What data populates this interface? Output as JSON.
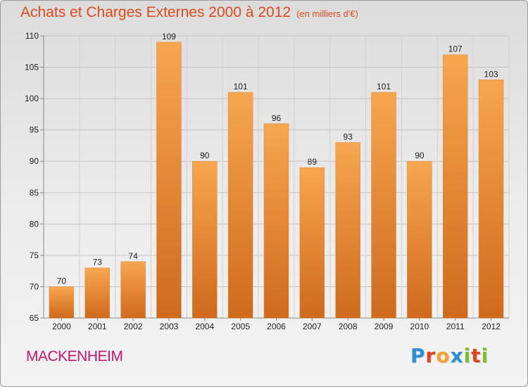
{
  "header": {
    "title": "Achats et Charges Externes 2000 à 2012",
    "subtitle": "(en milliers d'€)"
  },
  "footer": {
    "place": "MACKENHEIM",
    "logo_letters": [
      "P",
      "r",
      "o",
      "x",
      "i",
      "t",
      "i"
    ],
    "logo_colors": [
      "#2c8fd6",
      "#e2431c",
      "#f2a12c",
      "#2c8fd6",
      "#7cbd2a",
      "#e2431c",
      "#7cbd2a"
    ]
  },
  "colors": {
    "bar_light": "#f7a64f",
    "bar_dark": "#cf6a1c",
    "title": "#dd4a1c",
    "place": "#c8156b"
  },
  "chart_data": {
    "type": "bar",
    "title": "Achats et Charges Externes 2000 à 2012",
    "subtitle": "(en milliers d'€)",
    "xlabel": "",
    "ylabel": "",
    "categories": [
      "2000",
      "2001",
      "2002",
      "2003",
      "2004",
      "2005",
      "2006",
      "2007",
      "2008",
      "2009",
      "2010",
      "2011",
      "2012"
    ],
    "values": [
      70,
      73,
      74,
      109,
      90,
      101,
      96,
      89,
      93,
      101,
      90,
      107,
      103
    ],
    "ylim": [
      65,
      110
    ],
    "yticks": [
      65,
      70,
      75,
      80,
      85,
      90,
      95,
      100,
      105,
      110
    ],
    "grid": true,
    "legend": "none"
  }
}
